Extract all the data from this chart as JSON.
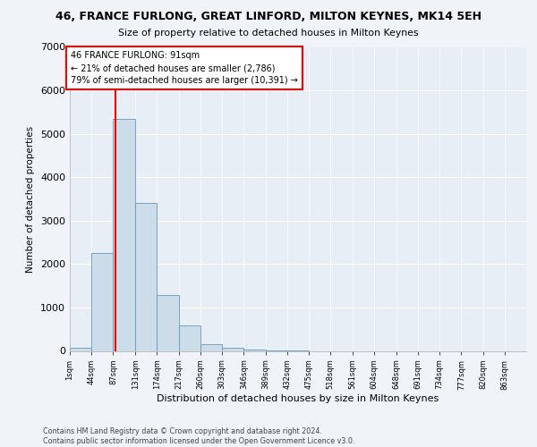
{
  "title": "46, FRANCE FURLONG, GREAT LINFORD, MILTON KEYNES, MK14 5EH",
  "subtitle": "Size of property relative to detached houses in Milton Keynes",
  "xlabel": "Distribution of detached houses by size in Milton Keynes",
  "ylabel": "Number of detached properties",
  "bar_color": "#ccdce8",
  "bar_edge_color": "#6699bb",
  "annotation_line_color": "red",
  "annotation_box_color": "red",
  "annotation_text": "46 FRANCE FURLONG: 91sqm\n← 21% of detached houses are smaller (2,786)\n79% of semi-detached houses are larger (10,391) →",
  "property_sqm": 91,
  "bin_edges": [
    1,
    44,
    87,
    131,
    174,
    217,
    260,
    303,
    346,
    389,
    432,
    475,
    518,
    561,
    604,
    648,
    691,
    734,
    777,
    820,
    863
  ],
  "bin_counts": [
    80,
    2250,
    5350,
    3400,
    1280,
    580,
    150,
    70,
    25,
    5,
    2,
    0,
    0,
    0,
    0,
    0,
    0,
    0,
    0,
    0
  ],
  "ylim": [
    0,
    7000
  ],
  "yticks": [
    0,
    1000,
    2000,
    3000,
    4000,
    5000,
    6000,
    7000
  ],
  "footer_line1": "Contains HM Land Registry data © Crown copyright and database right 2024.",
  "footer_line2": "Contains public sector information licensed under the Open Government Licence v3.0.",
  "background_color": "#f0f4f8",
  "plot_bg_color": "#e8eef5"
}
